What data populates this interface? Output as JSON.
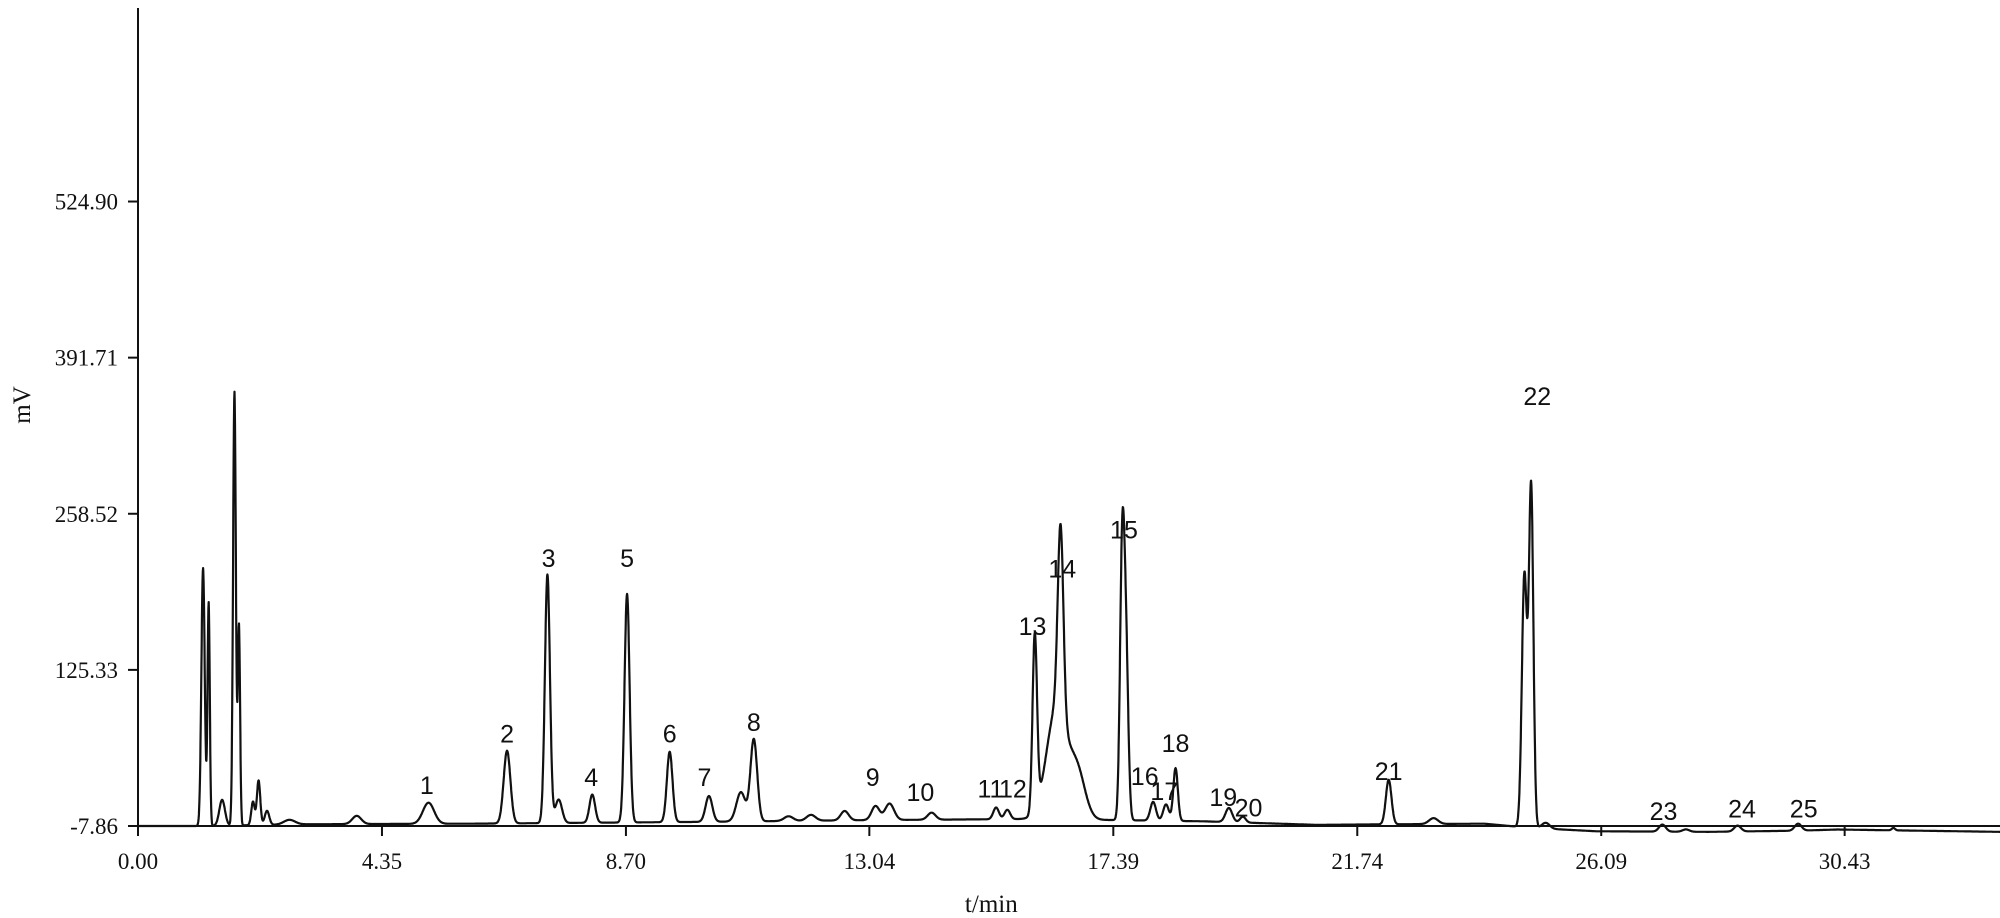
{
  "chart_data": {
    "type": "line",
    "title": "",
    "xlabel": "t/min",
    "ylabel": "mV",
    "xlim": [
      0,
      33.2
    ],
    "ylim": [
      -7.86,
      690
    ],
    "grid": false,
    "legend": "none",
    "line_color": "#111111",
    "x_ticks": [
      {
        "value": 0.0,
        "label": "0.00"
      },
      {
        "value": 4.35,
        "label": "4.35"
      },
      {
        "value": 8.7,
        "label": "8.70"
      },
      {
        "value": 13.04,
        "label": "13.04"
      },
      {
        "value": 17.39,
        "label": "17.39"
      },
      {
        "value": 21.74,
        "label": "21.74"
      },
      {
        "value": 26.09,
        "label": "26.09"
      },
      {
        "value": 30.43,
        "label": "30.43"
      }
    ],
    "y_ticks": [
      {
        "value": -7.86,
        "label": "-7.86"
      },
      {
        "value": 125.33,
        "label": "125.33"
      },
      {
        "value": 258.52,
        "label": "258.52"
      },
      {
        "value": 391.71,
        "label": "391.71"
      },
      {
        "value": 524.9,
        "label": "524.90"
      }
    ],
    "series": [
      {
        "baseline": [
          [
            0.0,
            0.0
          ],
          [
            1.1,
            0.0
          ],
          [
            3.0,
            1.5
          ],
          [
            6.0,
            2.0
          ],
          [
            10.0,
            3.5
          ],
          [
            13.0,
            5.0
          ],
          [
            16.0,
            6.0
          ],
          [
            19.0,
            4.0
          ],
          [
            21.0,
            1.0
          ],
          [
            24.0,
            2.0
          ],
          [
            24.8,
            -1.5
          ],
          [
            26.0,
            -4.5
          ],
          [
            28.0,
            -5.0
          ],
          [
            29.6,
            -4.0
          ],
          [
            30.3,
            -3.0
          ],
          [
            33.2,
            -5.0
          ]
        ],
        "peaks": [
          [
            1.16,
            220,
            0.03
          ],
          [
            1.26,
            190,
            0.02
          ],
          [
            1.5,
            22,
            0.05
          ],
          [
            1.72,
            370,
            0.025
          ],
          [
            1.8,
            170,
            0.02
          ],
          [
            2.05,
            20,
            0.03
          ],
          [
            2.15,
            38,
            0.03
          ],
          [
            2.3,
            12,
            0.04
          ],
          [
            2.7,
            4,
            0.1
          ],
          [
            3.9,
            7,
            0.08
          ],
          [
            5.18,
            18,
            0.1
          ],
          [
            6.58,
            62,
            0.06
          ],
          [
            7.3,
            212,
            0.045
          ],
          [
            7.5,
            20,
            0.06
          ],
          [
            8.1,
            24,
            0.05
          ],
          [
            8.72,
            195,
            0.045
          ],
          [
            9.48,
            60,
            0.05
          ],
          [
            10.18,
            22,
            0.06
          ],
          [
            10.75,
            25,
            0.08
          ],
          [
            10.98,
            70,
            0.06
          ],
          [
            11.6,
            4,
            0.08
          ],
          [
            12.0,
            5,
            0.08
          ],
          [
            12.6,
            8,
            0.07
          ],
          [
            13.15,
            12,
            0.07
          ],
          [
            13.4,
            14,
            0.08
          ],
          [
            14.15,
            6,
            0.07
          ],
          [
            15.3,
            10,
            0.05
          ],
          [
            15.5,
            8,
            0.05
          ],
          [
            15.99,
            150,
            0.04
          ],
          [
            16.38,
            95,
            0.18
          ],
          [
            16.45,
            160,
            0.05
          ],
          [
            16.75,
            38,
            0.14
          ],
          [
            17.55,
            232,
            0.04
          ],
          [
            17.62,
            130,
            0.04
          ],
          [
            18.1,
            16,
            0.05
          ],
          [
            18.33,
            14,
            0.05
          ],
          [
            18.5,
            45,
            0.04
          ],
          [
            19.45,
            12,
            0.06
          ],
          [
            19.7,
            5,
            0.05
          ],
          [
            22.3,
            38,
            0.05
          ],
          [
            23.1,
            5,
            0.08
          ],
          [
            24.72,
            215,
            0.045
          ],
          [
            24.84,
            290,
            0.04
          ],
          [
            25.1,
            5,
            0.07
          ],
          [
            27.18,
            6,
            0.06
          ],
          [
            27.6,
            2,
            0.06
          ],
          [
            28.52,
            5,
            0.06
          ],
          [
            29.6,
            6,
            0.06
          ],
          [
            31.3,
            2,
            0.03
          ]
        ]
      }
    ],
    "peak_labels": [
      {
        "text": "1",
        "x": 5.15,
        "y": 22
      },
      {
        "text": "2",
        "x": 6.58,
        "y": 66
      },
      {
        "text": "3",
        "x": 7.32,
        "y": 216
      },
      {
        "text": "4",
        "x": 8.08,
        "y": 29
      },
      {
        "text": "5",
        "x": 8.72,
        "y": 216
      },
      {
        "text": "6",
        "x": 9.48,
        "y": 66
      },
      {
        "text": "7",
        "x": 10.1,
        "y": 29
      },
      {
        "text": "8",
        "x": 10.98,
        "y": 76
      },
      {
        "text": "9",
        "x": 13.1,
        "y": 29
      },
      {
        "text": "10",
        "x": 13.95,
        "y": 16
      },
      {
        "text": "11",
        "x": 15.2,
        "y": 19
      },
      {
        "text": "12",
        "x": 15.6,
        "y": 19
      },
      {
        "text": "13",
        "x": 15.95,
        "y": 158
      },
      {
        "text": "14",
        "x": 16.48,
        "y": 207
      },
      {
        "text": "15",
        "x": 17.58,
        "y": 240
      },
      {
        "text": "16",
        "x": 17.95,
        "y": 30
      },
      {
        "text": "17",
        "x": 18.3,
        "y": 17
      },
      {
        "text": "18",
        "x": 18.5,
        "y": 58
      },
      {
        "text": "19",
        "x": 19.35,
        "y": 12
      },
      {
        "text": "20",
        "x": 19.8,
        "y": 3
      },
      {
        "text": "21",
        "x": 22.3,
        "y": 34
      },
      {
        "text": "22",
        "x": 24.95,
        "y": 354
      },
      {
        "text": "23",
        "x": 27.2,
        "y": 0
      },
      {
        "text": "24",
        "x": 28.6,
        "y": 2
      },
      {
        "text": "25",
        "x": 29.7,
        "y": 2
      }
    ]
  }
}
